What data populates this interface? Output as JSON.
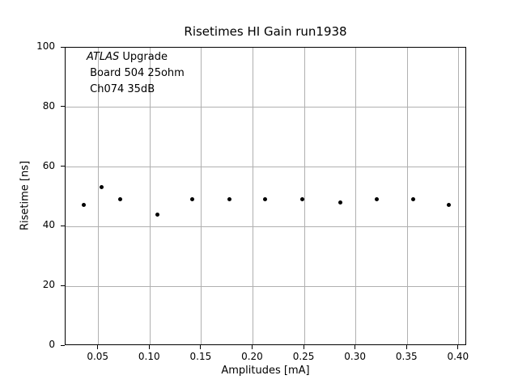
{
  "figure": {
    "title": "Risetimes HI Gain run1938",
    "xlabel": "Amplitudes [mA]",
    "ylabel": "Risetime [ns]",
    "annotation": {
      "line1_em": "ATLAS",
      "line1_rest": " Upgrade",
      "line2": " Board 504 25ohm",
      "line3": " Ch074 35dB"
    }
  },
  "chart_data": {
    "type": "scatter",
    "title": "Risetimes HI Gain run1938",
    "xlabel": "Amplitudes [mA]",
    "ylabel": "Risetime [ns]",
    "annotation_lines": [
      "ATLAS Upgrade",
      "Board 504 25ohm",
      "Ch074 35dB"
    ],
    "x": [
      0.036,
      0.053,
      0.071,
      0.107,
      0.141,
      0.177,
      0.212,
      0.248,
      0.285,
      0.32,
      0.356,
      0.39
    ],
    "y": [
      47.3,
      53.3,
      49.2,
      44.1,
      49.2,
      49.2,
      49.2,
      49.3,
      48.2,
      49.1,
      49.1,
      47.2
    ],
    "xlim": [
      0.018,
      0.408
    ],
    "ylim": [
      0,
      100
    ],
    "xticks": [
      0.05,
      0.1,
      0.15,
      0.2,
      0.25,
      0.3,
      0.35,
      0.4
    ],
    "xtick_labels": [
      "0.05",
      "0.10",
      "0.15",
      "0.20",
      "0.25",
      "0.30",
      "0.35",
      "0.40"
    ],
    "yticks": [
      0,
      20,
      40,
      60,
      80,
      100
    ],
    "ytick_labels": [
      "0",
      "20",
      "40",
      "60",
      "80",
      "100"
    ],
    "grid": true,
    "legend": "none",
    "marker": "black-dot",
    "colors": {
      "marker": "#000000",
      "grid": "#b0b0b0",
      "spine": "#000000",
      "text": "#000000",
      "background": "#ffffff"
    }
  }
}
